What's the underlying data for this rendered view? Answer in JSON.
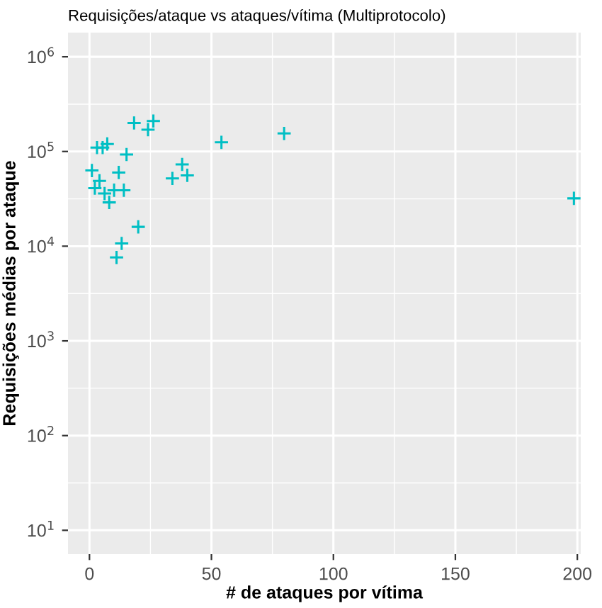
{
  "chart_data": {
    "type": "scatter",
    "title": "Requisições/ataque vs ataques/vítima (Multiprotocolo)",
    "xlabel": "# de ataques por vítima",
    "ylabel": "Requisições médias por ataque",
    "x": [
      18.3,
      26.2,
      24.0,
      3.1,
      5.4,
      7.3,
      15.2,
      54.1,
      1.0,
      12.0,
      38.0,
      34.0,
      40.1,
      4.1,
      2.2,
      6.2,
      10.1,
      14.1,
      8.1,
      20.0,
      13.2,
      11.1,
      79.8,
      198.6
    ],
    "series": [
      {
        "color": "#00bfc4",
        "values": [
          200000,
          210000,
          170000,
          110000,
          110000,
          120000,
          93000,
          125000,
          63000,
          60000,
          73000,
          52000,
          56000,
          49000,
          41000,
          36000,
          39000,
          39000,
          29000,
          16000,
          10700,
          7600,
          155000,
          32000
        ]
      }
    ],
    "log": "y",
    "xlim": [
      -8.8,
      201.4
    ],
    "xticks": [
      0,
      50,
      100,
      150,
      200
    ],
    "ylim": [
      5.6,
      1800000
    ],
    "yticks": [
      {
        "value": 10,
        "label": "10$^{1}$"
      },
      {
        "value": 100,
        "label": "10$^{2}$"
      },
      {
        "value": 1000,
        "label": "10$^{3}$"
      },
      {
        "value": 10000,
        "label": "10$^{4}$"
      },
      {
        "value": 100000,
        "label": "10$^{5}$"
      },
      {
        "value": 1000000,
        "label": "10$^{6}$"
      }
    ],
    "grid": true,
    "marker": "cross"
  }
}
